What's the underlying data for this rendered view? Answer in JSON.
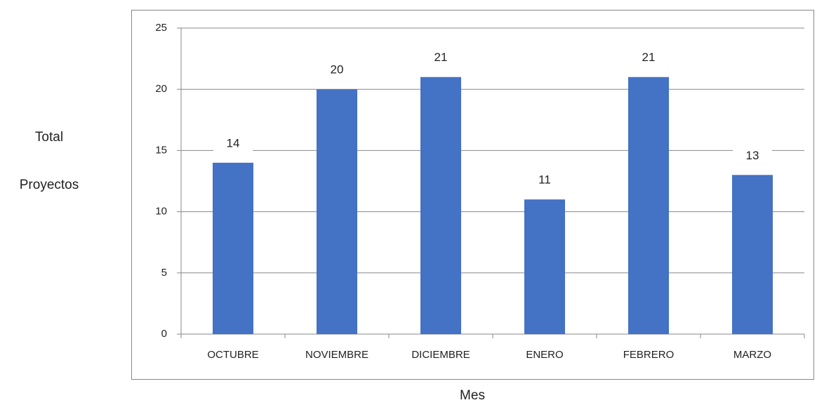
{
  "chart_data": {
    "type": "bar",
    "xlabel": "Mes",
    "ylabel": [
      "Total",
      "Proyectos"
    ],
    "categories": [
      "OCTUBRE",
      "NOVIEMBRE",
      "DICIEMBRE",
      "ENERO",
      "FEBRERO",
      "MARZO"
    ],
    "values": [
      14,
      20,
      21,
      11,
      21,
      13
    ],
    "color": "#4472c4",
    "ylim": [
      0,
      25
    ],
    "yticks": [
      0,
      5,
      10,
      15,
      20,
      25
    ],
    "grid": true
  }
}
